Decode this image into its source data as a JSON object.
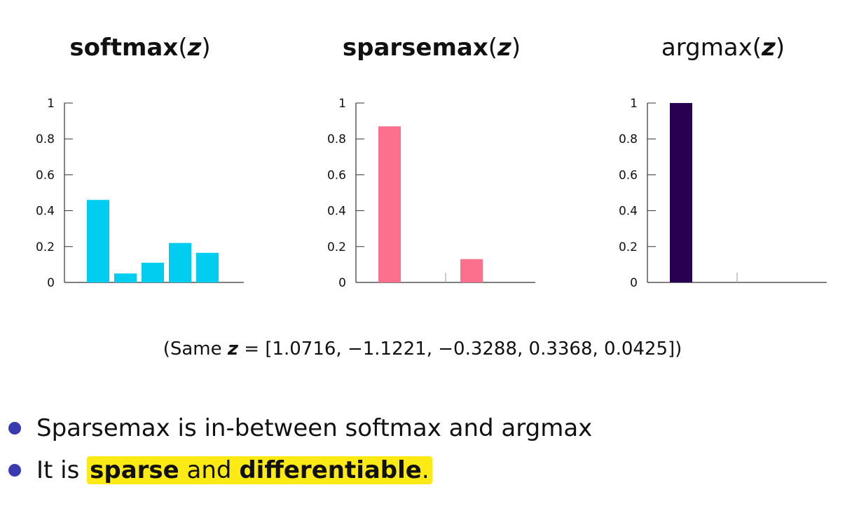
{
  "charts_meta": [
    {
      "fn": "softmax",
      "bold": true
    },
    {
      "fn": "sparsemax",
      "bold": true
    },
    {
      "fn": "argmax",
      "bold": false
    }
  ],
  "title_var": "z",
  "caption": {
    "prefix": "(Same",
    "var": "z",
    "rest": "= [1.0716, −1.1221, −0.3288, 0.3368, 0.0425])"
  },
  "bullets": {
    "first": "Sparsemax is in-between softmax and argmax",
    "second_prefix": "It is",
    "sparse": "sparse",
    "and": "and",
    "differentiable": "differentiable",
    "period": "."
  },
  "colors": {
    "softmax": "#00cdef",
    "sparsemax": "#fc6f8d",
    "argmax": "#270052",
    "highlight": "#fbea14",
    "bullet": "#3a3ab0"
  },
  "chart_data": [
    {
      "type": "bar",
      "title": "softmax(z)",
      "values": [
        0.46,
        0.05,
        0.11,
        0.22,
        0.165
      ],
      "ylim": [
        0,
        1
      ],
      "yticks": [
        "0",
        "0.2",
        "0.4",
        "0.6",
        "0.8",
        "1"
      ],
      "grid": false
    },
    {
      "type": "bar",
      "title": "sparsemax(z)",
      "values": [
        0.87,
        0,
        0,
        0.13,
        0
      ],
      "ylim": [
        0,
        1
      ],
      "yticks": [
        "0",
        "0.2",
        "0.4",
        "0.6",
        "0.8",
        "1"
      ],
      "grid": false
    },
    {
      "type": "bar",
      "title": "argmax(z)",
      "values": [
        1.0,
        0,
        0,
        0,
        0
      ],
      "ylim": [
        0,
        1
      ],
      "yticks": [
        "0",
        "0.2",
        "0.4",
        "0.6",
        "0.8",
        "1"
      ],
      "grid": false
    }
  ]
}
